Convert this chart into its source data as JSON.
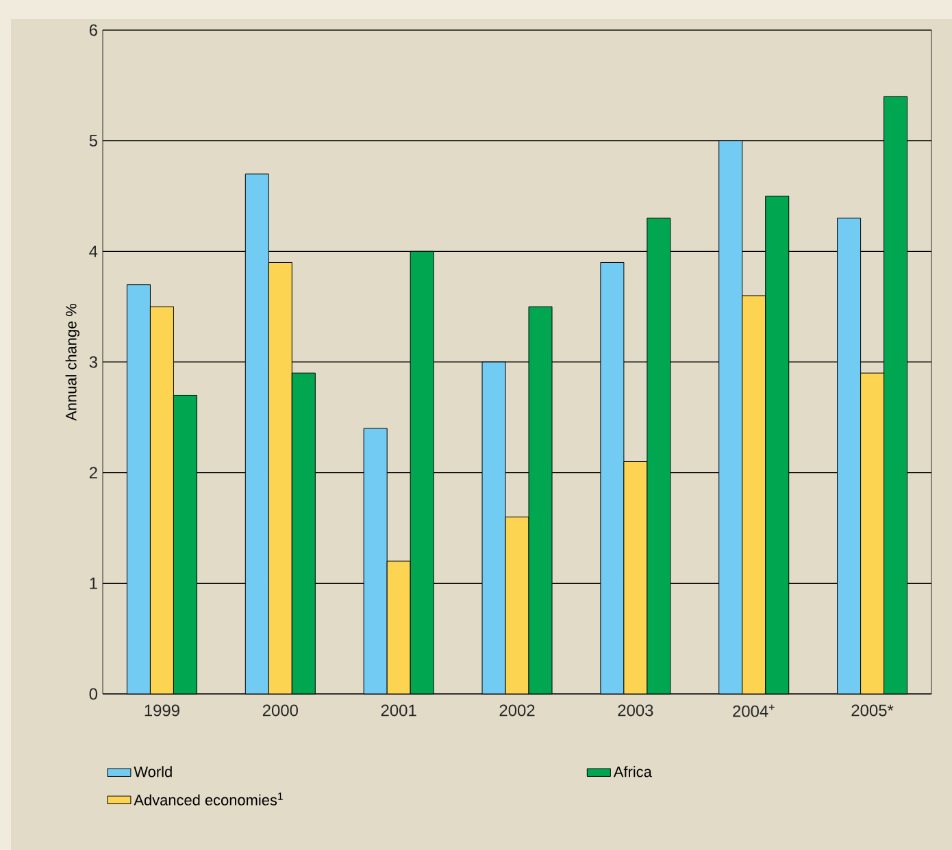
{
  "chart_data": {
    "type": "bar",
    "ylabel": "Annual change %",
    "categories": [
      "1999",
      "2000",
      "2001",
      "2002",
      "2003",
      "2004$^{+}$",
      "2005*"
    ],
    "series": [
      {
        "name": "World",
        "color": "#72cbf2",
        "values": [
          3.7,
          4.7,
          2.4,
          3.0,
          3.9,
          5.0,
          4.3
        ]
      },
      {
        "name": "Advanced economies$^{1}$",
        "color": "#fdd352",
        "values": [
          3.5,
          3.9,
          1.2,
          1.6,
          2.1,
          3.6,
          2.9
        ]
      },
      {
        "name": "Africa",
        "color": "#00a650",
        "values": [
          2.7,
          2.9,
          4.0,
          3.5,
          4.3,
          4.5,
          5.4
        ]
      }
    ],
    "ylim": [
      0,
      6
    ],
    "yticks": [
      0,
      1,
      2,
      3,
      4,
      5,
      6
    ],
    "grid": "y",
    "legend": "bottom"
  }
}
